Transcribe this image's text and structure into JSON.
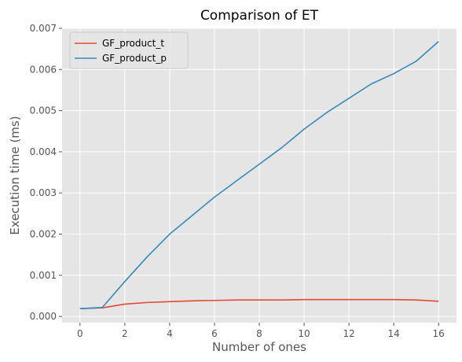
{
  "chart_data": {
    "type": "line",
    "title": "Comparison of ET",
    "xlabel": "Number of ones",
    "ylabel": "Execution time (ms)",
    "xlim": [
      -0.8,
      16.8
    ],
    "ylim": [
      -0.00015,
      0.007
    ],
    "xticks": [
      0,
      2,
      4,
      6,
      8,
      10,
      12,
      14,
      16
    ],
    "xtick_labels": [
      "0",
      "2",
      "4",
      "6",
      "8",
      "10",
      "12",
      "14",
      "16"
    ],
    "yticks": [
      0,
      0.001,
      0.002,
      0.003,
      0.004,
      0.005,
      0.006,
      0.007
    ],
    "ytick_labels": [
      "0.000",
      "0.001",
      "0.002",
      "0.003",
      "0.004",
      "0.005",
      "0.006",
      "0.007"
    ],
    "grid": true,
    "legend_position": "top-left",
    "x": [
      0,
      1,
      2,
      3,
      4,
      5,
      6,
      7,
      8,
      9,
      10,
      11,
      12,
      13,
      14,
      15,
      16
    ],
    "series": [
      {
        "name": "GF_product_t",
        "color": "#E24A33",
        "values": [
          0.00019,
          0.00021,
          0.0003,
          0.00034,
          0.00036,
          0.00038,
          0.00039,
          0.0004,
          0.0004,
          0.0004,
          0.00041,
          0.00041,
          0.00041,
          0.00041,
          0.00041,
          0.0004,
          0.00037
        ]
      },
      {
        "name": "GF_product_p",
        "color": "#348ABD",
        "values": [
          0.00019,
          0.00022,
          0.00085,
          0.00145,
          0.002,
          0.00245,
          0.0029,
          0.0033,
          0.0037,
          0.0041,
          0.00455,
          0.00495,
          0.0053,
          0.00565,
          0.0059,
          0.0062,
          0.00668
        ]
      }
    ]
  }
}
